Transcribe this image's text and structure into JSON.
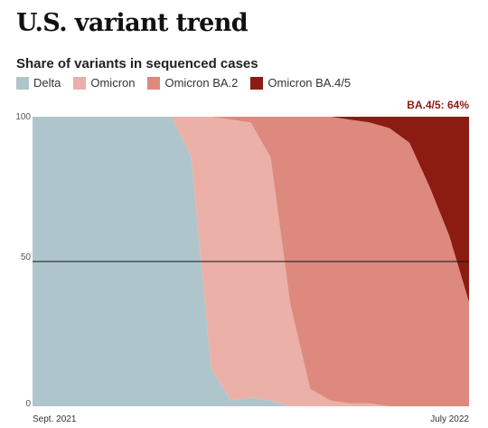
{
  "header": {
    "title": "U.S. variant trend"
  },
  "colors": {
    "Delta": "#aec6cb",
    "Omicron": "#ebb0a7",
    "Omicron BA.2": "#dd897e",
    "Omicron BA.4/5": "#8c1b12",
    "annotation": "#8c1b12"
  },
  "chart_data": {
    "type": "area",
    "stacked": true,
    "title": "Share of variants in sequenced cases",
    "xlabel": "",
    "ylabel": "",
    "ylim": [
      0,
      100
    ],
    "yticks": [
      0,
      50,
      100
    ],
    "x_tick_labels": [
      "Sept. 2021",
      "July 2022"
    ],
    "x": [
      "2021-09-04",
      "2021-09-18",
      "2021-10-02",
      "2021-10-16",
      "2021-10-30",
      "2021-11-13",
      "2021-11-27",
      "2021-12-11",
      "2021-12-25",
      "2022-01-08",
      "2022-01-22",
      "2022-02-05",
      "2022-02-19",
      "2022-03-05",
      "2022-03-19",
      "2022-04-02",
      "2022-04-16",
      "2022-04-30",
      "2022-05-14",
      "2022-05-28",
      "2022-06-11",
      "2022-06-25",
      "2022-07-09"
    ],
    "series": [
      {
        "name": "Delta",
        "values": [
          100,
          100,
          100,
          100,
          100,
          100,
          100,
          100,
          86,
          13,
          2,
          3,
          2,
          0,
          0,
          0,
          0,
          0,
          0,
          0,
          0,
          0,
          0
        ]
      },
      {
        "name": "Omicron",
        "values": [
          0,
          0,
          0,
          0,
          0,
          0,
          0,
          0,
          14,
          87,
          97,
          95,
          84,
          35,
          6,
          2,
          1,
          1,
          0,
          0,
          0,
          0,
          0
        ]
      },
      {
        "name": "Omicron BA.2",
        "values": [
          0,
          0,
          0,
          0,
          0,
          0,
          0,
          0,
          0,
          0,
          1,
          2,
          14,
          65,
          94,
          98,
          98,
          97,
          96,
          91,
          76,
          59,
          36
        ]
      },
      {
        "name": "Omicron BA.4/5",
        "values": [
          0,
          0,
          0,
          0,
          0,
          0,
          0,
          0,
          0,
          0,
          0,
          0,
          0,
          0,
          0,
          0,
          1,
          2,
          4,
          9,
          24,
          41,
          64
        ]
      }
    ],
    "reference_line": 50,
    "annotation": "BA.4/5: 64%"
  }
}
